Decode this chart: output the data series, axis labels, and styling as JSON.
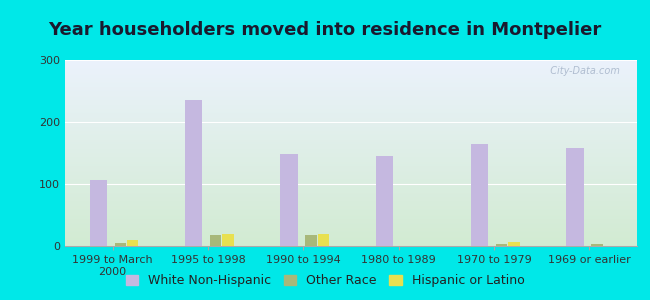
{
  "title": "Year householders moved into residence in Montpelier",
  "categories": [
    "1999 to March\n2000",
    "1995 to 1998",
    "1990 to 1994",
    "1980 to 1989",
    "1970 to 1979",
    "1969 or earlier"
  ],
  "white_non_hispanic": [
    107,
    235,
    148,
    145,
    165,
    158
  ],
  "other_race": [
    5,
    18,
    18,
    0,
    4,
    3
  ],
  "hispanic_or_latino": [
    10,
    20,
    20,
    0,
    6,
    0
  ],
  "white_color": "#c5b8e0",
  "other_color": "#a8b87a",
  "hispanic_color": "#e8e050",
  "bg_outer": "#00e8e8",
  "bg_plot_topleft": "#ddeedd",
  "bg_plot_topright": "#e8f0fa",
  "bg_plot_bottom": "#d8ecd4",
  "ylim": [
    0,
    300
  ],
  "yticks": [
    0,
    100,
    200,
    300
  ],
  "white_bar_width": 0.18,
  "small_bar_width": 0.12,
  "title_fontsize": 13,
  "tick_fontsize": 8,
  "legend_fontsize": 9,
  "watermark": "  City-Data.com"
}
